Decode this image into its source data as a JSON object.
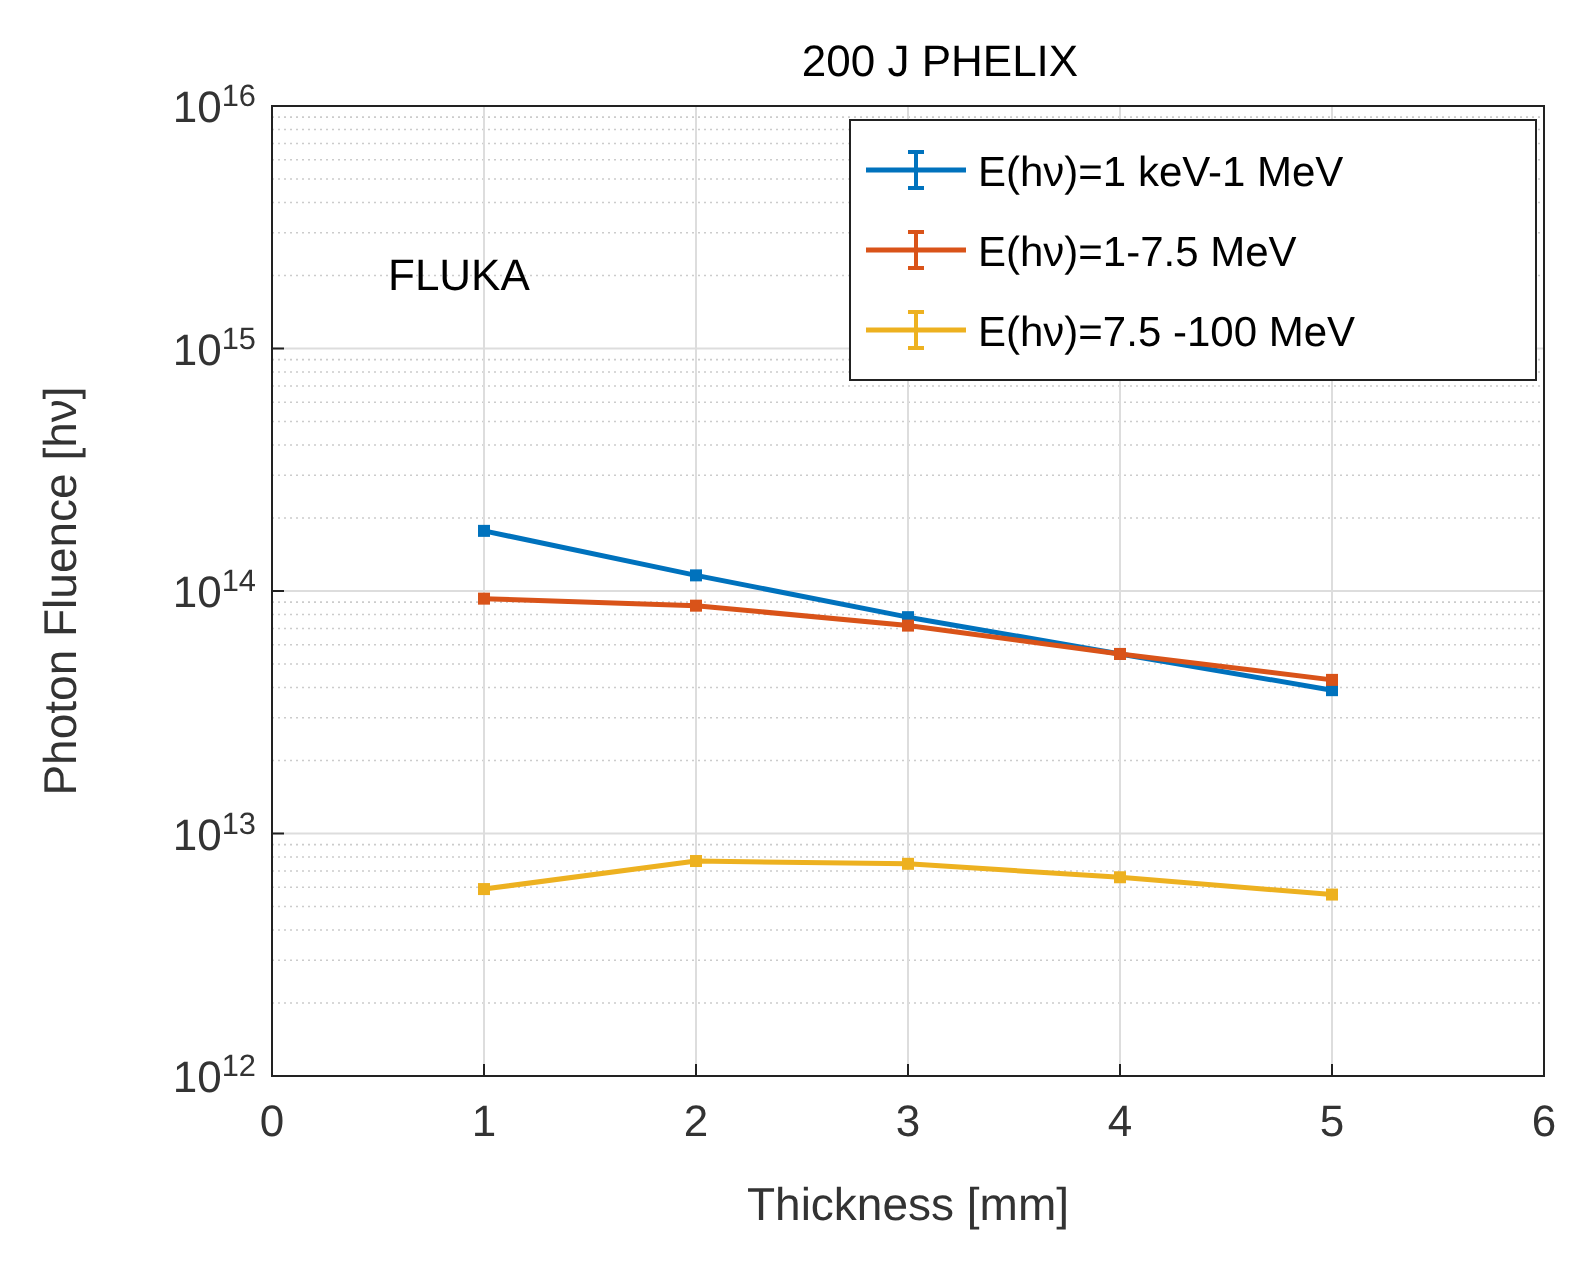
{
  "chart_data": {
    "type": "line",
    "title": "200 J PHELIX",
    "xlabel": "Thickness [mm]",
    "ylabel": "Photon Fluence [hν]",
    "annotations": [
      "FLUKA"
    ],
    "x": [
      1,
      2,
      3,
      4,
      5
    ],
    "series": [
      {
        "name": "E(hν)=1 keV-1 MeV",
        "color": "#0072bd",
        "values": [
          177000000000000.0,
          116000000000000.0,
          78000000000000.0,
          55000000000000.0,
          39000000000000.0
        ]
      },
      {
        "name": "E(hν)=1-7.5 MeV",
        "color": "#d95319",
        "values": [
          93000000000000.0,
          87000000000000.0,
          72000000000000.0,
          55000000000000.0,
          43000000000000.0
        ]
      },
      {
        "name": "E(hν)=7.5 -100 MeV",
        "color": "#edb120",
        "values": [
          5900000000000.0,
          7700000000000.0,
          7500000000000.0,
          6600000000000.0,
          5600000000000.0
        ]
      }
    ],
    "log": "y",
    "xlim": [
      0,
      6
    ],
    "xticks": [
      0,
      1,
      2,
      3,
      4,
      5,
      6
    ],
    "ylim": [
      1000000000000.0,
      1e+16
    ],
    "yticks": [
      {
        "value": 1000000000000.0,
        "label": "10$^{12}$"
      },
      {
        "value": 10000000000000.0,
        "label": "10$^{13}$"
      },
      {
        "value": 100000000000000.0,
        "label": "10$^{14}$"
      },
      {
        "value": 1000000000000000.0,
        "label": "10$^{15}$"
      },
      {
        "value": 1e+16,
        "label": "10$^{16}$"
      }
    ],
    "grid": true,
    "legend": "top right",
    "marker": "square",
    "line_style": "solid"
  }
}
